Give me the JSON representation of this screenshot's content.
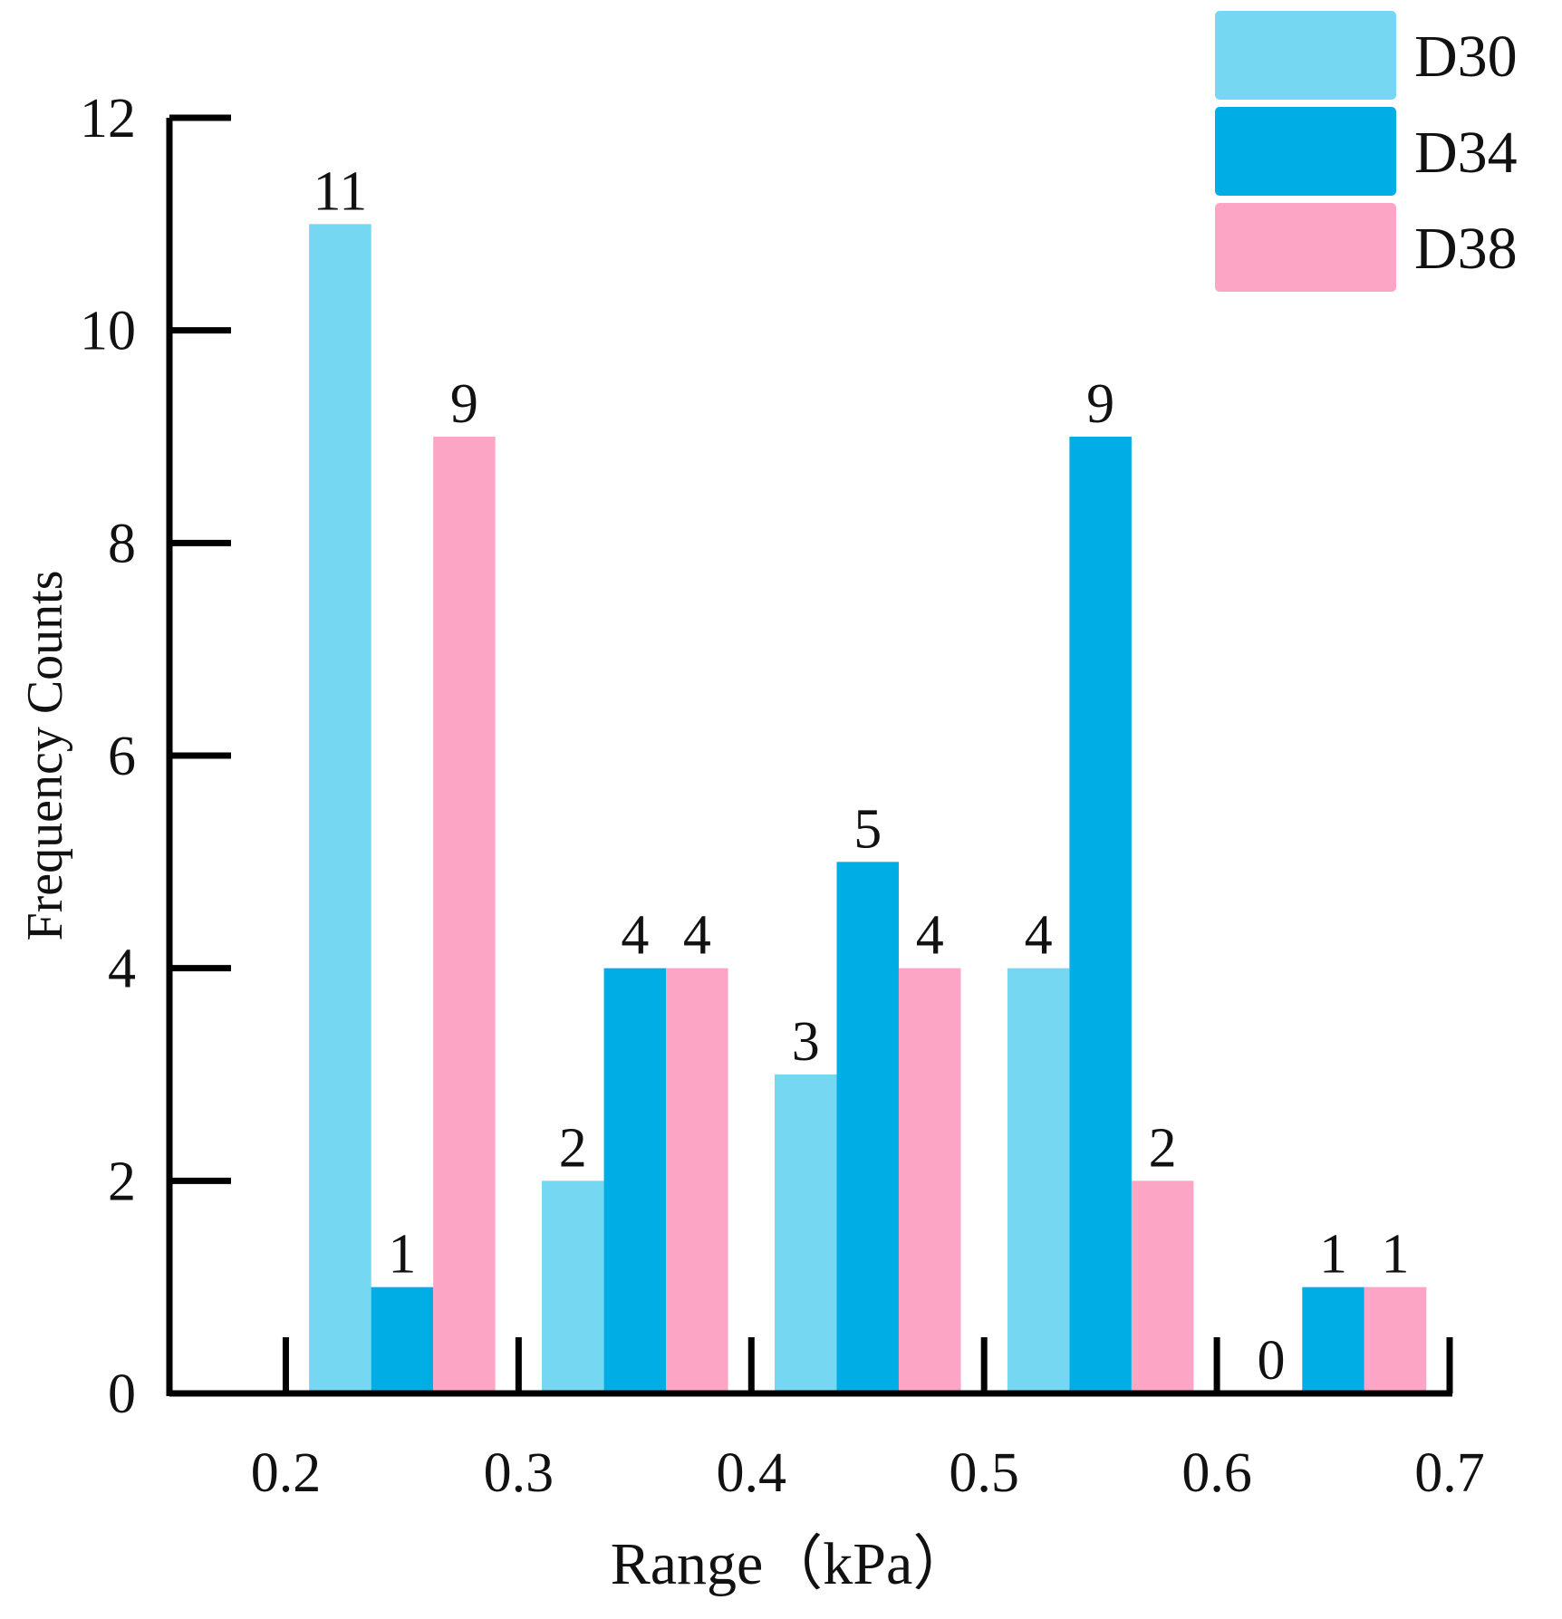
{
  "chart_data": {
    "type": "bar",
    "categories": [
      "0.2-0.3",
      "0.3-0.4",
      "0.4-0.5",
      "0.5-0.6",
      "0.6-0.7"
    ],
    "bin_edges": [
      0.2,
      0.3,
      0.4,
      0.5,
      0.6,
      0.7
    ],
    "series": [
      {
        "name": "D30",
        "color": "#76D7F2",
        "values": [
          11,
          2,
          3,
          4,
          0
        ]
      },
      {
        "name": "D34",
        "color": "#00AEE5",
        "values": [
          1,
          4,
          5,
          9,
          1
        ]
      },
      {
        "name": "D38",
        "color": "#FDA5C4",
        "values": [
          9,
          4,
          4,
          2,
          1
        ]
      }
    ],
    "xlabel": "Range（kPa）",
    "ylabel": "Frequency Counts",
    "xlim": [
      0.15,
      0.7
    ],
    "ylim": [
      0,
      12
    ],
    "yticks": [
      0,
      2,
      4,
      6,
      8,
      10,
      12
    ],
    "xticks": [
      "0.2",
      "0.3",
      "0.4",
      "0.5",
      "0.6",
      "0.7"
    ],
    "grid": false,
    "legend_position": "top-right"
  }
}
